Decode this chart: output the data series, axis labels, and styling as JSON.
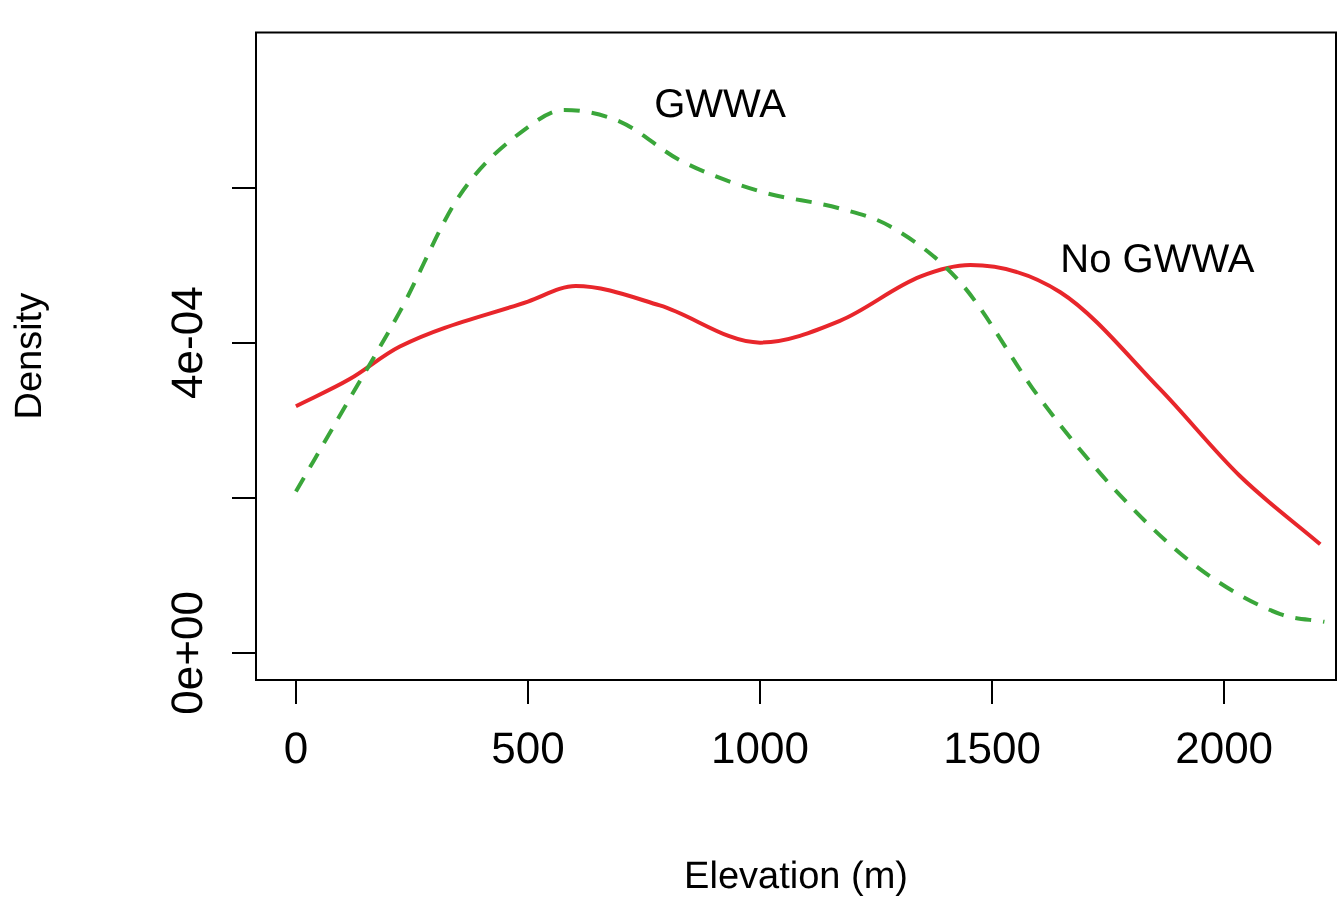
{
  "chart_data": {
    "type": "line",
    "xlabel": "Elevation (m)",
    "ylabel": "Density",
    "xlim": [
      -86,
      2241
    ],
    "xticks": [
      0,
      500,
      1000,
      1500,
      2000
    ],
    "ylim": [
      -3.5e-05,
      0.0008
    ],
    "yticks": [
      {
        "value": 0,
        "label": "0e+00"
      },
      {
        "value": 0.0002,
        "label": null
      },
      {
        "value": 0.0004,
        "label": "4e-04"
      },
      {
        "value": 0.0006,
        "label": null
      }
    ],
    "grid": false,
    "legend": false,
    "marker": "none",
    "series": [
      {
        "name": "GWWA",
        "color": "#3aa63a",
        "line_style": "dashed",
        "x": [
          0,
          116,
          224,
          353,
          500,
          578,
          698,
          828,
          1000,
          1172,
          1280,
          1431,
          1603,
          1776,
          1948,
          2121,
          2216
        ],
        "values": [
          0.000208,
          0.000328,
          0.00044,
          0.00059,
          0.000678,
          0.0007,
          0.000685,
          0.000635,
          0.000595,
          0.000573,
          0.00055,
          0.000478,
          0.000328,
          0.000203,
          0.000108,
          5e-05,
          4e-05
        ]
      },
      {
        "name": "No GWWA",
        "color": "#e8262b",
        "line_style": "solid",
        "x": [
          0,
          116,
          224,
          500,
          603,
          784,
          1000,
          1172,
          1345,
          1453,
          1647,
          1862,
          2034,
          2207
        ],
        "values": [
          0.000318,
          0.000353,
          0.000395,
          0.000453,
          0.000473,
          0.000448,
          0.0004,
          0.000428,
          0.000485,
          0.0005,
          0.000465,
          0.00034,
          0.000228,
          0.00014
        ]
      }
    ]
  }
}
